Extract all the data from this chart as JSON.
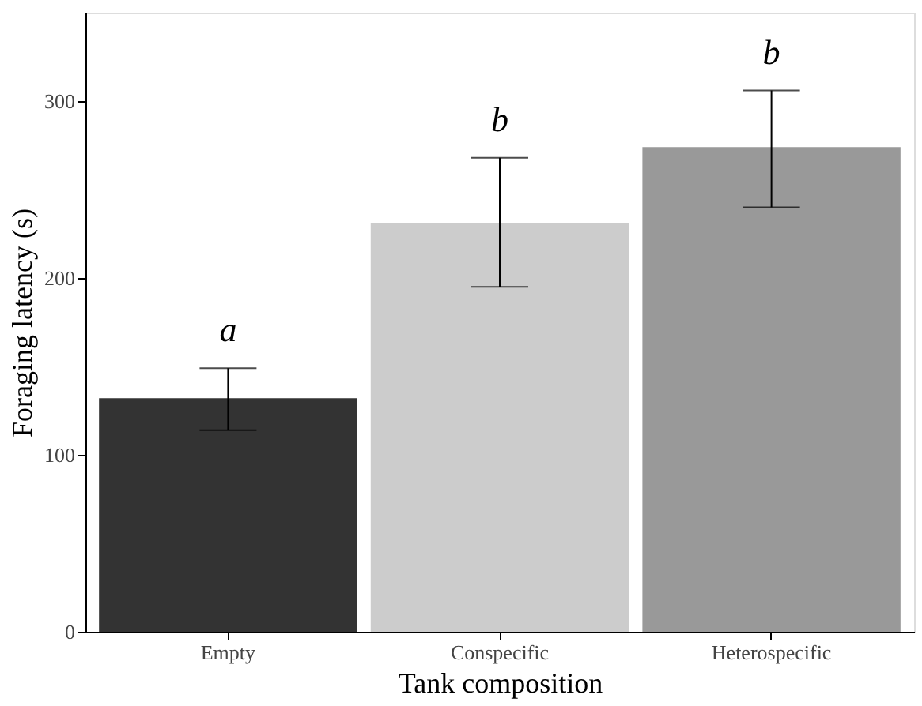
{
  "chart_data": {
    "type": "bar",
    "xlabel": "Tank composition",
    "ylabel": "Foraging latency (s)",
    "categories": [
      "Empty",
      "Conspecific",
      "Heterospecific"
    ],
    "values": [
      132,
      231,
      274
    ],
    "colors": [
      "#333333",
      "#cccccc",
      "#999999"
    ],
    "errors": [
      [
        114,
        149
      ],
      [
        195,
        268
      ],
      [
        240,
        306
      ]
    ],
    "ylim": [
      0,
      350
    ],
    "yticks": [
      0,
      100,
      200,
      300
    ],
    "grid": false,
    "annotations": [
      "a",
      "b",
      "b"
    ]
  }
}
